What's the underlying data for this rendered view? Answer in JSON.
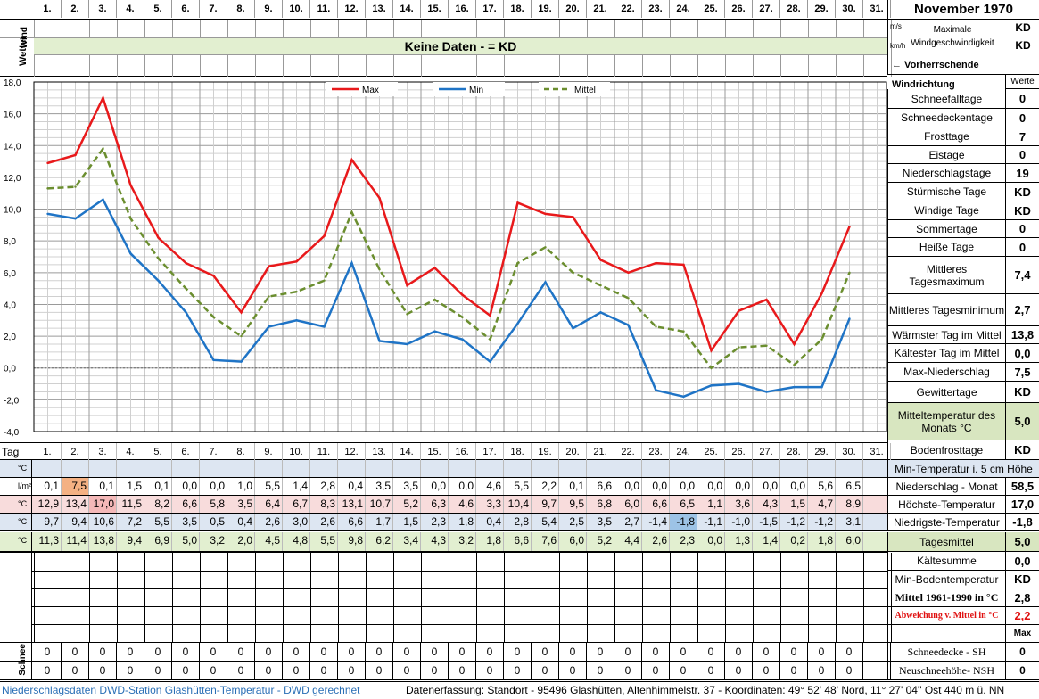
{
  "days": [
    "1.",
    "2.",
    "3.",
    "4.",
    "5.",
    "6.",
    "7.",
    "8.",
    "9.",
    "10.",
    "11.",
    "12.",
    "13.",
    "14.",
    "15.",
    "16.",
    "17.",
    "18.",
    "19.",
    "20.",
    "21.",
    "22.",
    "23.",
    "24.",
    "25.",
    "26.",
    "27.",
    "28.",
    "29.",
    "30.",
    "31."
  ],
  "header": {
    "title": "November 1970",
    "wind_label": "Wind",
    "unit_ms": "m/s",
    "unit_kmh": "km/h",
    "max_wind_label": "Maximale Windgeschwindigkeit",
    "max_wind_ms": "KD",
    "max_wind_kmh": "KD",
    "no_data_banner": "Keine Daten -  = KD",
    "prevailing_wind": "← Vorherrschende Windrichtung",
    "werte_label": "Werte"
  },
  "stats": [
    {
      "label": "Schneefalltage",
      "value": "0"
    },
    {
      "label": "Schneedeckentage",
      "value": "0"
    },
    {
      "label": "Frosttage",
      "value": "7"
    },
    {
      "label": "Eistage",
      "value": "0"
    },
    {
      "label": "Niederschlagstage",
      "value": "19"
    },
    {
      "label": "Stürmische Tage",
      "value": "KD"
    },
    {
      "label": "Windige Tage",
      "value": "KD"
    },
    {
      "label": "Sommertage",
      "value": "0"
    },
    {
      "label": "Heiße Tage",
      "value": "0"
    },
    {
      "label": "Mittleres Tagesmaximum",
      "value": "7,4"
    },
    {
      "label": "Mittleres Tagesminimum",
      "value": "2,7"
    },
    {
      "label": "Wärmster Tag im Mittel",
      "value": "13,8"
    },
    {
      "label": "Kältester Tag im Mittel",
      "value": "0,0"
    },
    {
      "label": "Max-Niederschlag",
      "value": "7,5"
    },
    {
      "label": "Gewittertage",
      "value": "KD"
    },
    {
      "label": "Mitteltemperatur des Monats °C",
      "value": "5,0"
    },
    {
      "label": "Bodenfrosttage",
      "value": "KD"
    }
  ],
  "table": {
    "tag_label": "Tag",
    "rows": [
      {
        "unit": "°C",
        "label": "Min-Temperatur i. 5 cm Höhe",
        "total": "",
        "values": [
          "",
          "",
          "",
          "",
          "",
          "",
          "",
          "",
          "",
          "",
          "",
          "",
          "",
          "",
          "",
          "",
          "",
          "",
          "",
          "",
          "",
          "",
          "",
          "",
          "",
          "",
          "",
          "",
          "",
          "",
          ""
        ]
      },
      {
        "unit": "l/m²",
        "label": "Niederschlag - Monat",
        "total": "58,5",
        "values": [
          "0,1",
          "7,5",
          "0,1",
          "1,5",
          "0,1",
          "0,0",
          "0,0",
          "1,0",
          "5,5",
          "1,4",
          "2,8",
          "0,4",
          "3,5",
          "3,5",
          "0,0",
          "0,0",
          "4,6",
          "5,5",
          "2,2",
          "0,1",
          "6,6",
          "0,0",
          "0,0",
          "0,0",
          "0,0",
          "0,0",
          "0,0",
          "0,0",
          "5,6",
          "6,5",
          ""
        ]
      },
      {
        "unit": "°C",
        "label": "Höchste-Temperatur",
        "total": "17,0",
        "values": [
          "12,9",
          "13,4",
          "17,0",
          "11,5",
          "8,2",
          "6,6",
          "5,8",
          "3,5",
          "6,4",
          "6,7",
          "8,3",
          "13,1",
          "10,7",
          "5,2",
          "6,3",
          "4,6",
          "3,3",
          "10,4",
          "9,7",
          "9,5",
          "6,8",
          "6,0",
          "6,6",
          "6,5",
          "1,1",
          "3,6",
          "4,3",
          "1,5",
          "4,7",
          "8,9",
          ""
        ]
      },
      {
        "unit": "°C",
        "label": "Niedrigste-Temperatur",
        "total": "-1,8",
        "values": [
          "9,7",
          "9,4",
          "10,6",
          "7,2",
          "5,5",
          "3,5",
          "0,5",
          "0,4",
          "2,6",
          "3,0",
          "2,6",
          "6,6",
          "1,7",
          "1,5",
          "2,3",
          "1,8",
          "0,4",
          "2,8",
          "5,4",
          "2,5",
          "3,5",
          "2,7",
          "-1,4",
          "-1,8",
          "-1,1",
          "-1,0",
          "-1,5",
          "-1,2",
          "-1,2",
          "3,1",
          ""
        ]
      },
      {
        "unit": "°C",
        "label": "Tagesmittel",
        "total": "5,0",
        "values": [
          "11,3",
          "11,4",
          "13,8",
          "9,4",
          "6,9",
          "5,0",
          "3,2",
          "2,0",
          "4,5",
          "4,8",
          "5,5",
          "9,8",
          "6,2",
          "3,4",
          "4,3",
          "3,2",
          "1,8",
          "6,6",
          "7,6",
          "6,0",
          "5,2",
          "4,4",
          "2,6",
          "2,3",
          "0,0",
          "1,3",
          "1,4",
          "0,2",
          "1,8",
          "6,0",
          ""
        ]
      }
    ],
    "extra": [
      {
        "label": "Kältesumme",
        "value": "0,0"
      },
      {
        "label": "Min-Bodentemperatur",
        "value": "KD"
      },
      {
        "label": "Mittel 1961-1990 in °C",
        "value": "2,8"
      },
      {
        "label": "Abweichung v. Mittel in °C",
        "value": "2,2"
      },
      {
        "label": "",
        "value": "Max"
      }
    ],
    "wetter_label": "Wetter",
    "schnee_label": "Schnee",
    "snow_rows": [
      {
        "label": "Schneedecke -   SH",
        "value": "0",
        "values": [
          "0",
          "0",
          "0",
          "0",
          "0",
          "0",
          "0",
          "0",
          "0",
          "0",
          "0",
          "0",
          "0",
          "0",
          "0",
          "0",
          "0",
          "0",
          "0",
          "0",
          "0",
          "0",
          "0",
          "0",
          "0",
          "0",
          "0",
          "0",
          "0",
          "0",
          ""
        ]
      },
      {
        "label": "Neuschneehöhe- NSH",
        "value": "0",
        "values": [
          "0",
          "0",
          "0",
          "0",
          "0",
          "0",
          "0",
          "0",
          "0",
          "0",
          "0",
          "0",
          "0",
          "0",
          "0",
          "0",
          "0",
          "0",
          "0",
          "0",
          "0",
          "0",
          "0",
          "0",
          "0",
          "0",
          "0",
          "0",
          "0",
          "0",
          ""
        ]
      }
    ]
  },
  "footer": {
    "left": "Niederschlagsdaten DWD-Station Glashütten-Temperatur -  DWD gerechnet",
    "right": "Datenerfassung: Standort -  95496  Glashütten, Altenhimmelstr. 37 - Koordinaten:  49° 52' 48' Nord,   11° 27' 04'' Ost   440 m ü. NN"
  },
  "chart_data": {
    "type": "line",
    "x": [
      1,
      2,
      3,
      4,
      5,
      6,
      7,
      8,
      9,
      10,
      11,
      12,
      13,
      14,
      15,
      16,
      17,
      18,
      19,
      20,
      21,
      22,
      23,
      24,
      25,
      26,
      27,
      28,
      29,
      30
    ],
    "ylim": [
      -4,
      18
    ],
    "yticks": [
      "18,0",
      "16,0",
      "14,0",
      "12,0",
      "10,0",
      "8,0",
      "6,0",
      "4,0",
      "2,0",
      "0,0",
      "-2,0",
      "-4,0"
    ],
    "grid": true,
    "legend": "top-center",
    "series": [
      {
        "name": "Max",
        "color": "#e8191b",
        "dash": false,
        "values": [
          12.9,
          13.4,
          17.0,
          11.5,
          8.2,
          6.6,
          5.8,
          3.5,
          6.4,
          6.7,
          8.3,
          13.1,
          10.7,
          5.2,
          6.3,
          4.6,
          3.3,
          10.4,
          9.7,
          9.5,
          6.8,
          6.0,
          6.6,
          6.5,
          1.1,
          3.6,
          4.3,
          1.5,
          4.7,
          8.9
        ]
      },
      {
        "name": "Min",
        "color": "#1f74c6",
        "dash": false,
        "values": [
          9.7,
          9.4,
          10.6,
          7.2,
          5.5,
          3.5,
          0.5,
          0.4,
          2.6,
          3.0,
          2.6,
          6.6,
          1.7,
          1.5,
          2.3,
          1.8,
          0.4,
          2.8,
          5.4,
          2.5,
          3.5,
          2.7,
          -1.4,
          -1.8,
          -1.1,
          -1.0,
          -1.5,
          -1.2,
          -1.2,
          3.1
        ]
      },
      {
        "name": "Mittel",
        "color": "#6b8e2f",
        "dash": true,
        "values": [
          11.3,
          11.4,
          13.8,
          9.4,
          6.9,
          5.0,
          3.2,
          2.0,
          4.5,
          4.8,
          5.5,
          9.8,
          6.2,
          3.4,
          4.3,
          3.2,
          1.8,
          6.6,
          7.6,
          6.0,
          5.2,
          4.4,
          2.6,
          2.3,
          0.0,
          1.3,
          1.4,
          0.2,
          1.8,
          6.0
        ]
      }
    ]
  }
}
